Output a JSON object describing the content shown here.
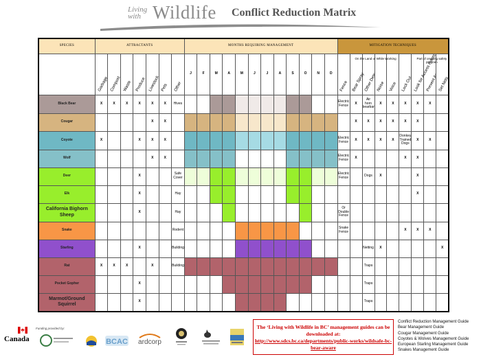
{
  "header": {
    "brand_small": "Living with",
    "brand_big": "Wildlife",
    "title": "Conflict Reduction Matrix"
  },
  "groups": {
    "species": "SPECIES",
    "attractants": "ATTRACTANTS",
    "months": "MONTHS REQUIRING MANAGEMENT",
    "mitigation": "MITIGATION TECHNIQUES"
  },
  "subheaders": {
    "land": "On the Land or While Working",
    "safety": "Part of ongoing safety program"
  },
  "attractants": [
    "Garbage",
    "Compost",
    "Waste",
    "Produce",
    "Livestock",
    "Pets",
    "Other"
  ],
  "months": [
    "J",
    "F",
    "M",
    "A",
    "M",
    "J",
    "J",
    "A",
    "S",
    "O",
    "N",
    "D"
  ],
  "mitigation": [
    "Fence",
    "Bear Spray",
    "Other Deterrents",
    "Noise",
    "Voice",
    "Lock Out",
    "Look for Access Points",
    "Prevent Access",
    "Set Nets"
  ],
  "colors": {
    "black_bear": "#ab9a98",
    "cougar": "#d6b480",
    "coyote": "#6fb8c4",
    "coyote_light": "#a6dbe4",
    "wolf": "#85c0c8",
    "deer": "#98ee2c",
    "deer_light": "#eefed9",
    "elk": "#98ee2c",
    "sheep": "#98ee2c",
    "snake": "#f89646",
    "starling": "#9050cc",
    "rat": "#b2636b",
    "gopher": "#b2636b",
    "squirrel": "#b2636b",
    "faded": "#f0eae8"
  },
  "rows": [
    {
      "name": "Black Bear",
      "color": "#ab9a98",
      "attr": [
        "X",
        "X",
        "X",
        "X",
        "X",
        "X",
        "Hives"
      ],
      "months": [
        "",
        "",
        "#ab9a98",
        "#ab9a98",
        "#f0eae8",
        "#f0eae8",
        "#f0eae8",
        "#f0eae8",
        "#ab9a98",
        "#ab9a98",
        "",
        ""
      ],
      "mit": [
        "Electric Fence",
        "X",
        "Air horn bearbanger",
        "X",
        "X",
        "X",
        "X",
        "X",
        ""
      ]
    },
    {
      "name": "Cougar",
      "color": "#d6b480",
      "attr": [
        "",
        "",
        "",
        "",
        "X",
        "X",
        ""
      ],
      "months": [
        "#d6b480",
        "#d6b480",
        "#d6b480",
        "#d6b480",
        "#f7e7cb",
        "#f7e7cb",
        "#f7e7cb",
        "#f7e7cb",
        "#d6b480",
        "#d6b480",
        "#d6b480",
        "#d6b480"
      ],
      "mit": [
        "",
        "X",
        "X",
        "X",
        "X",
        "X",
        "X",
        "",
        ""
      ]
    },
    {
      "name": "Coyote",
      "color": "#6fb8c4",
      "attr": [
        "X",
        "",
        "",
        "X",
        "X",
        "X",
        ""
      ],
      "months": [
        "#6fb8c4",
        "#6fb8c4",
        "#6fb8c4",
        "#6fb8c4",
        "#a6dbe4",
        "#a6dbe4",
        "#a6dbe4",
        "#a6dbe4",
        "#6fb8c4",
        "#6fb8c4",
        "#6fb8c4",
        "#6fb8c4"
      ],
      "mit": [
        "Electric Fence",
        "X",
        "X",
        "X",
        "X",
        "Donkey Trained Dogs",
        "X",
        "X",
        ""
      ]
    },
    {
      "name": "Wolf",
      "color": "#85c0c8",
      "attr": [
        "",
        "",
        "",
        "",
        "X",
        "X",
        ""
      ],
      "months": [
        "#85c0c8",
        "#85c0c8",
        "#85c0c8",
        "#85c0c8",
        "",
        "",
        "",
        "",
        "#85c0c8",
        "#85c0c8",
        "#85c0c8",
        "#85c0c8"
      ],
      "mit": [
        "Electric Fence",
        "X",
        "",
        "",
        "",
        "X",
        "X",
        "",
        ""
      ]
    },
    {
      "name": "Deer",
      "color": "#98ee2c",
      "attr": [
        "",
        "",
        "",
        "X",
        "",
        "",
        "Safe Cover"
      ],
      "months": [
        "#eefed9",
        "#eefed9",
        "#98ee2c",
        "#98ee2c",
        "#eefed9",
        "#eefed9",
        "#eefed9",
        "#eefed9",
        "#98ee2c",
        "#98ee2c",
        "#eefed9",
        "#eefed9"
      ],
      "mit": [
        "Electric Fence",
        "",
        "Dogs",
        "X",
        "",
        "",
        "X",
        "",
        ""
      ]
    },
    {
      "name": "Elk",
      "color": "#98ee2c",
      "attr": [
        "",
        "",
        "",
        "X",
        "",
        "",
        "Hay"
      ],
      "months": [
        "",
        "",
        "#98ee2c",
        "#98ee2c",
        "",
        "",
        "",
        "",
        "#98ee2c",
        "#98ee2c",
        "",
        ""
      ],
      "mit": [
        "",
        "",
        "",
        "",
        "",
        "",
        "X",
        "",
        ""
      ]
    },
    {
      "name": "California Bighorn Sheep",
      "color": "#98ee2c",
      "attr": [
        "",
        "",
        "",
        "X",
        "",
        "",
        "Hay"
      ],
      "months": [
        "",
        "",
        "",
        "#98ee2c",
        "",
        "",
        "",
        "",
        "",
        "#98ee2c",
        "",
        ""
      ],
      "mit": [
        "Or Double Fence",
        "",
        "",
        "",
        "",
        "",
        "",
        "",
        ""
      ]
    },
    {
      "name": "Snake",
      "color": "#f89646",
      "attr": [
        "",
        "",
        "",
        "",
        "",
        "",
        "Rodent"
      ],
      "months": [
        "",
        "",
        "",
        "",
        "#f89646",
        "#f89646",
        "#f89646",
        "#f89646",
        "#f89646",
        "",
        "",
        ""
      ],
      "mit": [
        "Snake Fence",
        "",
        "",
        "",
        "",
        "X",
        "X",
        "X",
        ""
      ]
    },
    {
      "name": "Starling",
      "color": "#9050cc",
      "attr": [
        "",
        "",
        "",
        "X",
        "",
        "",
        "Buildings"
      ],
      "months": [
        "",
        "",
        "",
        "",
        "#9050cc",
        "#9050cc",
        "#9050cc",
        "#9050cc",
        "#9050cc",
        "#9050cc",
        "",
        ""
      ],
      "mit": [
        "",
        "",
        "Netting",
        "X",
        "",
        "",
        "",
        "",
        "X"
      ]
    },
    {
      "name": "Rat",
      "color": "#b2636b",
      "attr": [
        "X",
        "X",
        "X",
        "",
        "X",
        "",
        "Buildings"
      ],
      "months": [
        "#b2636b",
        "#b2636b",
        "#b2636b",
        "#b2636b",
        "#b2636b",
        "#b2636b",
        "#b2636b",
        "#b2636b",
        "#b2636b",
        "#b2636b",
        "#b2636b",
        "#b2636b"
      ],
      "mit": [
        "",
        "",
        "Traps",
        "",
        "",
        "",
        "",
        "",
        ""
      ]
    },
    {
      "name": "Pocket Gopher",
      "color": "#b2636b",
      "attr": [
        "",
        "",
        "",
        "X",
        "",
        "",
        ""
      ],
      "months": [
        "",
        "",
        "",
        "#b2636b",
        "#b2636b",
        "#b2636b",
        "#b2636b",
        "#b2636b",
        "#b2636b",
        "#b2636b",
        "",
        ""
      ],
      "mit": [
        "",
        "",
        "Traps",
        "",
        "",
        "",
        "",
        "",
        ""
      ]
    },
    {
      "name": "Marmot/Ground Squirrel",
      "color": "#b2636b",
      "attr": [
        "",
        "",
        "",
        "X",
        "",
        "",
        ""
      ],
      "months": [
        "",
        "",
        "",
        "",
        "#b2636b",
        "#b2636b",
        "#b2636b",
        "#b2636b",
        "",
        "",
        "",
        ""
      ],
      "mit": [
        "",
        "",
        "Traps",
        "",
        "",
        "",
        "",
        "",
        ""
      ]
    }
  ],
  "footer": {
    "canada": "Canada",
    "funding_label": "Funding provided by:",
    "link_intro": "The ‘Living with Wildlife in BC’ management guides can be downloaded at:",
    "link_url": "http://www.sdcs.bc.ca/departments/public-works/wildsafe-bc-bear-aware",
    "guides": [
      "Conflict Reduction Management Guide",
      "Bear Management Guide",
      "Cougar Management Guide",
      "Coyotes & Wolves Management Guide",
      "European Starling Management Guide",
      "Snakes Management Guide"
    ]
  }
}
